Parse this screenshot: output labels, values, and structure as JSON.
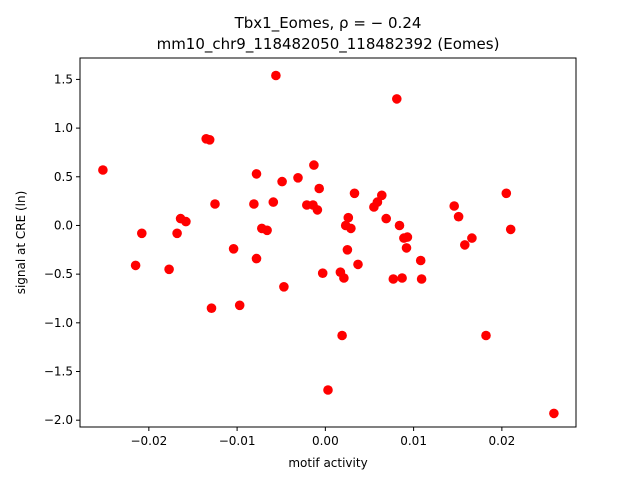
{
  "chart_data": {
    "type": "scatter",
    "title_line1": "Tbx1_Eomes, ρ = − 0.24",
    "title_line2": "mm10_chr9_118482050_118482392 (Eomes)",
    "xlabel": "motif activity",
    "ylabel": "signal at CRE (ln)",
    "xlim": [
      -0.0278,
      0.0284
    ],
    "ylim": [
      -2.07,
      1.72
    ],
    "x_ticks": [
      -0.02,
      -0.01,
      0.0,
      0.01,
      0.02
    ],
    "x_tick_labels": [
      "−0.02",
      "−0.01",
      "0.00",
      "0.01",
      "0.02"
    ],
    "y_ticks": [
      -2.0,
      -1.5,
      -1.0,
      -0.5,
      0.0,
      0.5,
      1.0,
      1.5
    ],
    "y_tick_labels": [
      "−2.0",
      "−1.5",
      "−1.0",
      "−0.5",
      "0.0",
      "0.5",
      "1.0",
      "1.5"
    ],
    "grid": false,
    "marker_color": "#ff0000",
    "points": [
      {
        "x": -0.0252,
        "y": 0.57
      },
      {
        "x": -0.0215,
        "y": -0.41
      },
      {
        "x": -0.0208,
        "y": -0.08
      },
      {
        "x": -0.0177,
        "y": -0.45
      },
      {
        "x": -0.0168,
        "y": -0.08
      },
      {
        "x": -0.0164,
        "y": 0.07
      },
      {
        "x": -0.0158,
        "y": 0.04
      },
      {
        "x": -0.0135,
        "y": 0.89
      },
      {
        "x": -0.0131,
        "y": 0.88
      },
      {
        "x": -0.0129,
        "y": -0.85
      },
      {
        "x": -0.0125,
        "y": 0.22
      },
      {
        "x": -0.0104,
        "y": -0.24
      },
      {
        "x": -0.0097,
        "y": -0.82
      },
      {
        "x": -0.0081,
        "y": 0.22
      },
      {
        "x": -0.0078,
        "y": 0.53
      },
      {
        "x": -0.0078,
        "y": -0.34
      },
      {
        "x": -0.0072,
        "y": -0.03
      },
      {
        "x": -0.0066,
        "y": -0.05
      },
      {
        "x": -0.0059,
        "y": 0.24
      },
      {
        "x": -0.0056,
        "y": 1.54
      },
      {
        "x": -0.0049,
        "y": 0.45
      },
      {
        "x": -0.0047,
        "y": -0.63
      },
      {
        "x": -0.0031,
        "y": 0.49
      },
      {
        "x": -0.0021,
        "y": 0.21
      },
      {
        "x": -0.0014,
        "y": 0.21
      },
      {
        "x": -0.0013,
        "y": 0.62
      },
      {
        "x": -0.0009,
        "y": 0.16
      },
      {
        "x": -0.0007,
        "y": 0.38
      },
      {
        "x": -0.0003,
        "y": -0.49
      },
      {
        "x": 0.0003,
        "y": -1.69
      },
      {
        "x": 0.0017,
        "y": -0.48
      },
      {
        "x": 0.0019,
        "y": -1.13
      },
      {
        "x": 0.0021,
        "y": -0.54
      },
      {
        "x": 0.0023,
        "y": 0.0
      },
      {
        "x": 0.0025,
        "y": -0.25
      },
      {
        "x": 0.0026,
        "y": 0.08
      },
      {
        "x": 0.0029,
        "y": -0.03
      },
      {
        "x": 0.0033,
        "y": 0.33
      },
      {
        "x": 0.0037,
        "y": -0.4
      },
      {
        "x": 0.0055,
        "y": 0.19
      },
      {
        "x": 0.0059,
        "y": 0.24
      },
      {
        "x": 0.0064,
        "y": 0.31
      },
      {
        "x": 0.0069,
        "y": 0.07
      },
      {
        "x": 0.0077,
        "y": -0.55
      },
      {
        "x": 0.0081,
        "y": 1.3
      },
      {
        "x": 0.0084,
        "y": 0.0
      },
      {
        "x": 0.0087,
        "y": -0.54
      },
      {
        "x": 0.0089,
        "y": -0.13
      },
      {
        "x": 0.0093,
        "y": -0.12
      },
      {
        "x": 0.0092,
        "y": -0.23
      },
      {
        "x": 0.0108,
        "y": -0.36
      },
      {
        "x": 0.0109,
        "y": -0.55
      },
      {
        "x": 0.0146,
        "y": 0.2
      },
      {
        "x": 0.0151,
        "y": 0.09
      },
      {
        "x": 0.0158,
        "y": -0.2
      },
      {
        "x": 0.0166,
        "y": -0.13
      },
      {
        "x": 0.0182,
        "y": -1.13
      },
      {
        "x": 0.0205,
        "y": 0.33
      },
      {
        "x": 0.021,
        "y": -0.04
      },
      {
        "x": 0.0259,
        "y": -1.93
      }
    ]
  }
}
